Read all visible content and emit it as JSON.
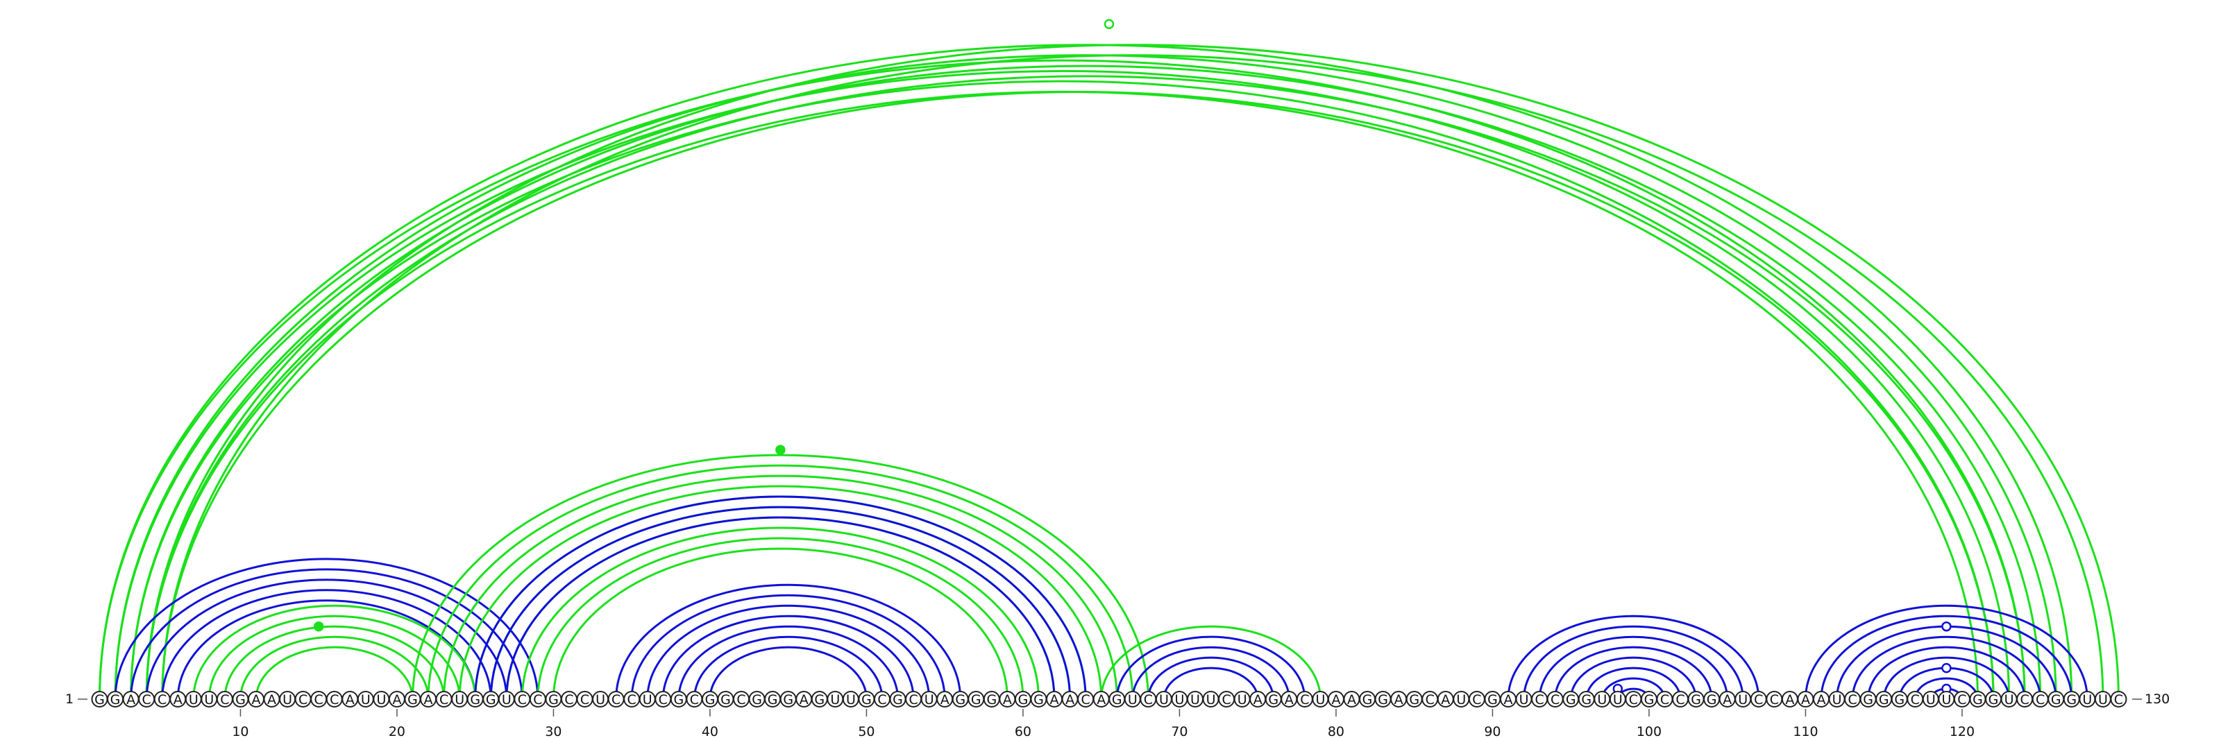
{
  "sequence": "GGACCAUUCGAAUCCCAUUAGACUGGUCCGCCUCCUCGCGGCGGGAGUUGCGCUAGGGAGGAACAGUCUUUUCUAGACUAAGGAGCAUCGAUCCGGUUCGCCGGAUCCAAAUCGGGCUUCGGUCCGGUUC",
  "start_label": "1",
  "end_label": "130",
  "tick_labels": [
    "10",
    "20",
    "30",
    "40",
    "50",
    "60",
    "70",
    "80",
    "90",
    "100",
    "110",
    "120"
  ],
  "colors": {
    "reference_helix": "#1010d8",
    "predicted_helix": "#1be01b"
  },
  "chart_data": {
    "type": "arc",
    "sequence_length": 130,
    "helices": [
      {
        "color": "green",
        "pairs": [
          [
            1,
            124
          ],
          [
            2,
            123
          ],
          [
            3,
            122
          ],
          [
            4,
            121
          ]
        ]
      },
      {
        "color": "green",
        "pairs": [
          [
            1,
            127
          ],
          [
            2,
            126
          ],
          [
            3,
            125
          ],
          [
            4,
            124
          ],
          [
            5,
            122
          ]
        ]
      },
      {
        "color": "green",
        "pairs": [
          [
            4,
            130
          ],
          [
            5,
            129
          ]
        ]
      },
      {
        "color": "blue",
        "pairs": [
          [
            2,
            29
          ],
          [
            3,
            28
          ],
          [
            4,
            27
          ],
          [
            5,
            26
          ],
          [
            6,
            25
          ]
        ]
      },
      {
        "color": "green",
        "pairs": [
          [
            7,
            25
          ],
          [
            8,
            24
          ],
          [
            9,
            23
          ],
          [
            10,
            22
          ],
          [
            11,
            21
          ]
        ]
      },
      {
        "color": "green",
        "pairs": [
          [
            21,
            68
          ],
          [
            22,
            67
          ],
          [
            23,
            66
          ],
          [
            24,
            65
          ],
          [
            25,
            64
          ],
          [
            26,
            63
          ],
          [
            27,
            62
          ],
          [
            28,
            61
          ],
          [
            29,
            60
          ],
          [
            30,
            59
          ]
        ]
      },
      {
        "color": "blue",
        "pairs": [
          [
            25,
            64
          ],
          [
            26,
            63
          ],
          [
            27,
            62
          ]
        ]
      },
      {
        "color": "blue",
        "pairs": [
          [
            34,
            56
          ],
          [
            35,
            55
          ],
          [
            36,
            54
          ],
          [
            37,
            53
          ]
        ]
      },
      {
        "color": "blue",
        "pairs": [
          [
            38,
            52
          ],
          [
            39,
            51
          ],
          [
            40,
            50
          ]
        ]
      },
      {
        "color": "green",
        "pairs": [
          [
            65,
            79
          ]
        ]
      },
      {
        "color": "blue",
        "pairs": [
          [
            66,
            78
          ],
          [
            67,
            77
          ],
          [
            68,
            76
          ],
          [
            69,
            75
          ]
        ]
      },
      {
        "color": "blue",
        "pairs": [
          [
            91,
            107
          ],
          [
            92,
            106
          ],
          [
            93,
            105
          ],
          [
            94,
            104
          ],
          [
            95,
            103
          ],
          [
            96,
            102
          ],
          [
            97,
            101
          ],
          [
            98,
            100
          ]
        ]
      },
      {
        "color": "blue",
        "pairs": [
          [
            110,
            128
          ],
          [
            111,
            127
          ],
          [
            112,
            126
          ],
          [
            113,
            125
          ],
          [
            114,
            124
          ],
          [
            115,
            123
          ],
          [
            116,
            122
          ],
          [
            117,
            121
          ],
          [
            118,
            120
          ]
        ]
      }
    ],
    "markers": [
      {
        "position": 65.5,
        "arc_span": 130,
        "color": "green",
        "filled": false
      },
      {
        "position": 44.5,
        "arc_span": 48,
        "color": "green",
        "filled": true
      },
      {
        "position": 15,
        "arc_span": 14,
        "color": "green",
        "filled": true
      },
      {
        "position": 119,
        "arc_span": 14,
        "color": "blue",
        "filled": false
      },
      {
        "position": 119,
        "arc_span": 6,
        "color": "blue",
        "filled": false
      },
      {
        "position": 119,
        "arc_span": 2,
        "color": "blue",
        "filled": false
      },
      {
        "position": 98,
        "arc_span": 2,
        "color": "blue",
        "filled": false
      }
    ]
  }
}
